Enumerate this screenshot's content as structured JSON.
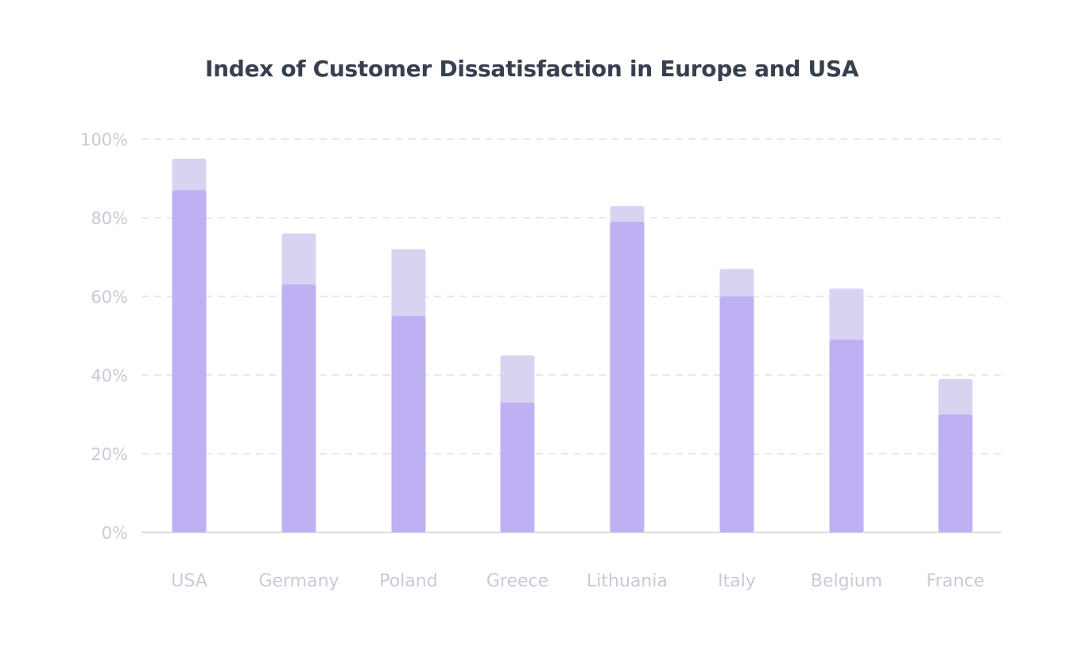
{
  "chart_data": {
    "type": "bar",
    "title": "Index of Customer Dissatisfaction in Europe and USA",
    "xlabel": "",
    "ylabel": "",
    "categories": [
      "USA",
      "Germany",
      "Poland",
      "Greece",
      "Lithuania",
      "Italy",
      "Belgium",
      "France"
    ],
    "series": [
      {
        "values": [
          87,
          63,
          55,
          33,
          79,
          60,
          49,
          30
        ],
        "color": "#bfb0f3"
      },
      {
        "values": [
          95,
          76,
          72,
          45,
          83,
          67,
          62,
          39
        ],
        "color": "#d9d3f2"
      }
    ],
    "ylim": [
      0,
      100
    ],
    "yticks": [
      "0%",
      "20%",
      "40%",
      "60%",
      "80%",
      "100%"
    ],
    "grid": true,
    "legend": "none",
    "colors": {
      "title": "#37404f",
      "tick_text": "#c6cbd6",
      "grid": "#dfe2e7",
      "baseline": "#d9dce2"
    }
  }
}
